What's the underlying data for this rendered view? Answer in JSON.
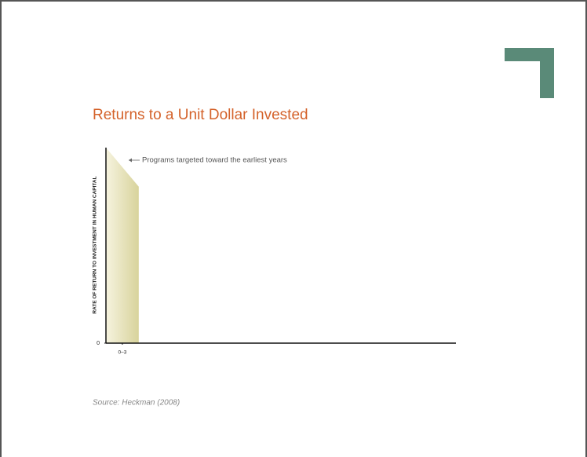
{
  "chart_data": {
    "type": "area",
    "title": "Returns to a Unit Dollar Invested",
    "y_label": "RATE OF RETURN TO INVESTMENT IN HUMAN CAPITAL",
    "annotation": "Programs targeted toward the earliest years",
    "source": "Source: Heckman (2008)",
    "x": [
      0,
      3
    ],
    "values": [
      100,
      80
    ],
    "xlim": [
      0,
      32
    ],
    "xticks": [
      {
        "value": 1.5,
        "label": "0–3"
      }
    ],
    "ylim": [
      0,
      100
    ],
    "yticks": [
      0
    ],
    "colors": [
      "#f6f3df",
      "#d8d39b"
    ]
  }
}
